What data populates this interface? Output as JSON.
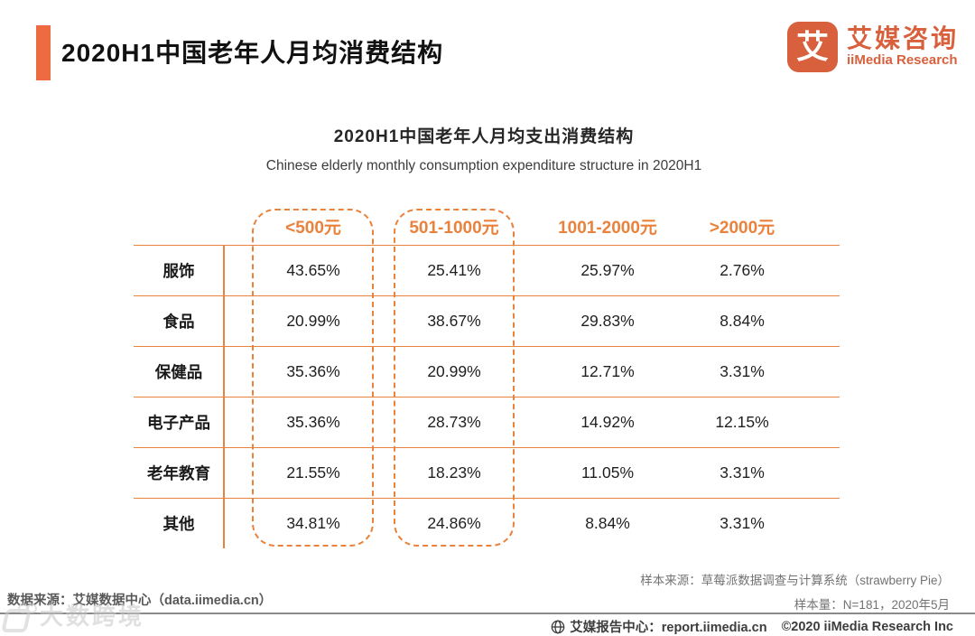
{
  "header": {
    "title": "2020H1中国老年人月均消费结构",
    "logo": {
      "icon_char": "艾",
      "name_cn": "艾媒咨询",
      "name_en": "iiMedia Research"
    }
  },
  "chart_data": {
    "type": "table",
    "title": "2020H1中国老年人月均支出消费结构",
    "subtitle_en": "Chinese elderly monthly consumption expenditure structure in 2020H1",
    "columns": [
      "<500元",
      "501-1000元",
      "1001-2000元",
      ">2000元"
    ],
    "categories": [
      "服饰",
      "食品",
      "保健品",
      "电子产品",
      "老年教育",
      "其他"
    ],
    "rows": [
      [
        "43.65%",
        "25.41%",
        "25.97%",
        "2.76%"
      ],
      [
        "20.99%",
        "38.67%",
        "29.83%",
        "8.84%"
      ],
      [
        "35.36%",
        "20.99%",
        "12.71%",
        "3.31%"
      ],
      [
        "35.36%",
        "28.73%",
        "14.92%",
        "12.15%"
      ],
      [
        "21.55%",
        "18.23%",
        "11.05%",
        "3.31%"
      ],
      [
        "34.81%",
        "24.86%",
        "8.84%",
        "3.31%"
      ]
    ],
    "highlighted_columns": [
      "<500元",
      "501-1000元"
    ],
    "layout": {
      "highlight_style": "orange dashed rounded rectangles around first two data columns",
      "grid": "horizontal orange rules between rows, vertical orange rule after label column"
    }
  },
  "footer": {
    "sample_source": "样本来源：草莓派数据调查与计算系统（strawberry Pie）",
    "sample_size": "样本量：N=181，2020年5月",
    "data_source": "数据来源：艾媒数据中心（data.iimedia.cn）",
    "report_center": "艾媒报告中心：report.iimedia.cn",
    "copyright": "©2020  iiMedia Research Inc",
    "watermark": "大数跨境"
  },
  "colors": {
    "accent_table": "#E8823C",
    "title_bar": "#EE6A41",
    "logo_orange": "#D8603C",
    "text_dark": "#1f1f1f",
    "footer_gray": "#737373"
  }
}
